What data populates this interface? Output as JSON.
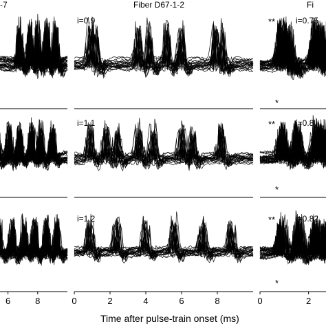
{
  "figure": {
    "xlabel": "Time after pulse-train onset (ms)",
    "panel_titles": {
      "left": "-7",
      "middle": "Fiber D67-1-2",
      "right": "Fi"
    }
  },
  "chart_data": [
    {
      "panel": "left-top",
      "type": "line",
      "title": "-7",
      "xlim": [
        5,
        10
      ],
      "x_ticks": [],
      "traces": "overlaid spike traces"
    },
    {
      "panel": "left-middle",
      "type": "line",
      "xlim": [
        5,
        10
      ],
      "x_ticks": []
    },
    {
      "panel": "left-bottom",
      "type": "line",
      "xlim": [
        5,
        10
      ],
      "x_ticks": [
        "6",
        "8"
      ]
    },
    {
      "panel": "middle-top",
      "type": "line",
      "title": "Fiber D67-1-2",
      "annotation": "i=0.9",
      "xlim": [
        0,
        10
      ],
      "x_ticks": []
    },
    {
      "panel": "middle-middle",
      "type": "line",
      "annotation": "i=1.1",
      "xlim": [
        0,
        10
      ],
      "x_ticks": []
    },
    {
      "panel": "middle-bottom",
      "type": "line",
      "annotation": "i=1.2",
      "xlim": [
        0,
        10
      ],
      "x_ticks": [
        "0",
        "2",
        "4",
        "6",
        "8"
      ],
      "xlabel": "Time after pulse-train onset (ms)"
    },
    {
      "panel": "right-top",
      "type": "line",
      "title": "Fi",
      "annotation": "i=0.75",
      "markers": [
        "**",
        "*"
      ],
      "xlim": [
        0,
        3
      ],
      "x_ticks": []
    },
    {
      "panel": "right-middle",
      "type": "line",
      "annotation": "i=0.8",
      "markers": [
        "**",
        "*"
      ],
      "xlim": [
        0,
        3
      ],
      "x_ticks": []
    },
    {
      "panel": "right-bottom",
      "type": "line",
      "annotation": "i=0.82",
      "markers": [
        "**",
        "*"
      ],
      "xlim": [
        0,
        3
      ],
      "x_ticks": [
        "0",
        "2"
      ]
    }
  ]
}
